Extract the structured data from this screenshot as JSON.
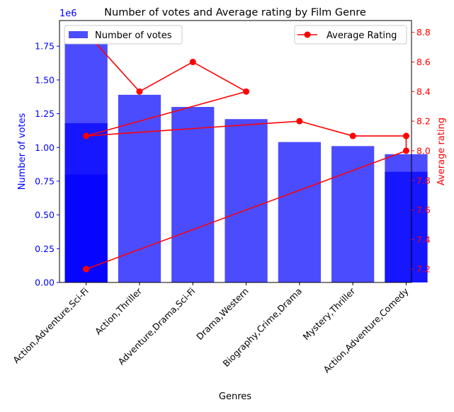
{
  "chart_data": {
    "type": "bar+line",
    "title": "Number of votes and Average rating by Film Genre",
    "xlabel": "Genres",
    "ylabel_left": "Number of votes",
    "ylabel_right": "Average rating",
    "left_offset_label": "1e6",
    "categories": [
      "Action,Adventure,Sci-Fi",
      "Action,Thriller",
      "Adventure,Drama,Sci-Fi",
      "Drama,Western",
      "Biography,Crime,Drama",
      "Mystery,Thriller",
      "Action,Adventure,Comedy"
    ],
    "bars": [
      {
        "category_index": 0,
        "value": 1.84
      },
      {
        "category_index": 0,
        "value": 1.18
      },
      {
        "category_index": 0,
        "value": 0.8
      },
      {
        "category_index": 1,
        "value": 1.39
      },
      {
        "category_index": 2,
        "value": 1.3
      },
      {
        "category_index": 3,
        "value": 1.21
      },
      {
        "category_index": 4,
        "value": 1.04
      },
      {
        "category_index": 5,
        "value": 1.01
      },
      {
        "category_index": 6,
        "value": 0.95
      },
      {
        "category_index": 6,
        "value": 0.82
      }
    ],
    "bar_series_name": "Number of votes",
    "line_series_name": "Average Rating",
    "line_points": [
      {
        "category_index": 0,
        "value": 8.8
      },
      {
        "category_index": 1,
        "value": 8.4
      },
      {
        "category_index": 2,
        "value": 8.6
      },
      {
        "category_index": 3,
        "value": 8.4
      },
      {
        "category_index": 0,
        "value": 8.1
      },
      {
        "category_index": 4,
        "value": 8.2
      },
      {
        "category_index": 5,
        "value": 8.1
      },
      {
        "category_index": 6,
        "value": 8.1
      },
      {
        "category_index": 6,
        "value": 8.0
      },
      {
        "category_index": 0,
        "value": 7.2
      }
    ],
    "ylim_left": [
      0,
      1.94
    ],
    "ylim_right": [
      7.11,
      8.88
    ],
    "left_ticks": [
      "0.00",
      "0.25",
      "0.50",
      "0.75",
      "1.00",
      "1.25",
      "1.50",
      "1.75"
    ],
    "right_ticks": [
      "7.2",
      "7.4",
      "7.6",
      "7.8",
      "8.0",
      "8.2",
      "8.4",
      "8.6",
      "8.8"
    ],
    "bar_color": "#0000ff",
    "bar_opacity": 0.7,
    "line_color": "#ff0000",
    "left_axis_color": "#0000ff",
    "right_axis_color": "#ff0000",
    "legend_bar_placement": "upper left",
    "legend_line_placement": "upper right",
    "grid": false
  }
}
